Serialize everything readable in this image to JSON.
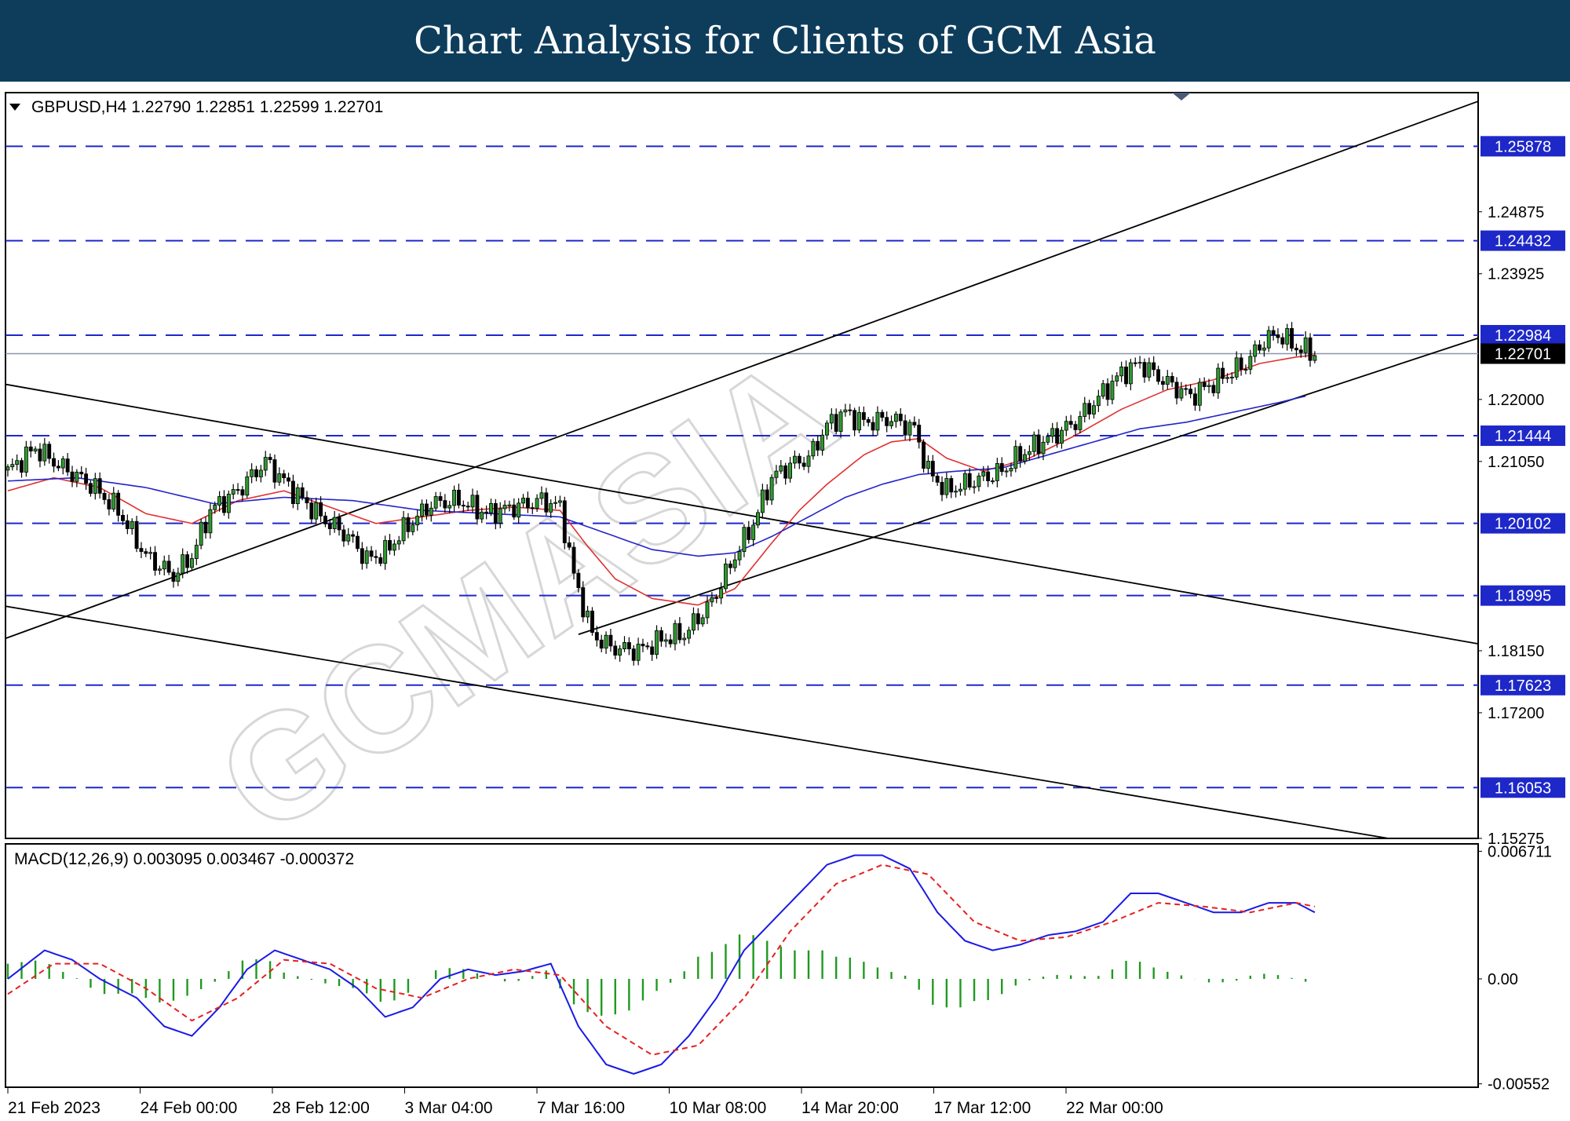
{
  "banner": {
    "title": "Chart Analysis for Clients of GCM Asia"
  },
  "chart_data": {
    "type": "candlestick",
    "symbol_header": "GBPUSD,H4  1.22790 1.22851 1.22599 1.22701",
    "price_axis": {
      "ticks": [
        "1.24875",
        "1.23925",
        "1.22000",
        "1.21050",
        "1.18150",
        "1.17200",
        "1.15275"
      ],
      "range": [
        1.15275,
        1.267
      ]
    },
    "levels": [
      "1.25878",
      "1.24432",
      "1.22984",
      "1.21444",
      "1.20102",
      "1.18995",
      "1.17623",
      "1.16053"
    ],
    "current_price": "1.22701",
    "x_axis_labels": [
      "21 Feb 2023",
      "24 Feb 00:00",
      "28 Feb 12:00",
      "3 Mar 04:00",
      "7 Mar 16:00",
      "10 Mar 08:00",
      "14 Mar 20:00",
      "17 Mar 12:00",
      "22 Mar 00:00"
    ],
    "close_path": [
      [
        0,
        1.209
      ],
      [
        6,
        1.2125
      ],
      [
        12,
        1.2095
      ],
      [
        18,
        1.207
      ],
      [
        24,
        1.203
      ],
      [
        30,
        1.196
      ],
      [
        36,
        1.193
      ],
      [
        40,
        1.196
      ],
      [
        44,
        1.203
      ],
      [
        50,
        1.206
      ],
      [
        56,
        1.2105
      ],
      [
        62,
        1.206
      ],
      [
        68,
        1.202
      ],
      [
        74,
        1.199
      ],
      [
        78,
        1.1955
      ],
      [
        82,
        1.1965
      ],
      [
        86,
        1.2
      ],
      [
        92,
        1.204
      ],
      [
        98,
        1.2045
      ],
      [
        104,
        1.2025
      ],
      [
        110,
        1.2035
      ],
      [
        116,
        1.2045
      ],
      [
        120,
        1.2035
      ],
      [
        123,
        1.193
      ],
      [
        127,
        1.184
      ],
      [
        131,
        1.182
      ],
      [
        137,
        1.1815
      ],
      [
        143,
        1.1835
      ],
      [
        147,
        1.184
      ],
      [
        153,
        1.189
      ],
      [
        158,
        1.196
      ],
      [
        162,
        1.201
      ],
      [
        166,
        1.208
      ],
      [
        170,
        1.21
      ],
      [
        174,
        1.211
      ],
      [
        178,
        1.216
      ],
      [
        182,
        1.218
      ],
      [
        186,
        1.2165
      ],
      [
        192,
        1.217
      ],
      [
        197,
        1.2155
      ],
      [
        200,
        1.209
      ],
      [
        204,
        1.206
      ],
      [
        210,
        1.2075
      ],
      [
        216,
        1.209
      ],
      [
        220,
        1.2115
      ],
      [
        226,
        1.214
      ],
      [
        232,
        1.2165
      ],
      [
        238,
        1.221
      ],
      [
        242,
        1.224
      ],
      [
        246,
        1.2255
      ],
      [
        252,
        1.2225
      ],
      [
        257,
        1.2205
      ],
      [
        263,
        1.223
      ],
      [
        269,
        1.2255
      ],
      [
        273,
        1.229
      ],
      [
        276,
        1.23
      ],
      [
        280,
        1.228
      ],
      [
        284,
        1.227
      ]
    ],
    "ma_indicators": [
      {
        "color": "#e03030",
        "points": [
          [
            0,
            1.206
          ],
          [
            10,
            1.208
          ],
          [
            20,
            1.2065
          ],
          [
            30,
            1.2025
          ],
          [
            40,
            1.201
          ],
          [
            50,
            1.2045
          ],
          [
            60,
            1.206
          ],
          [
            70,
            1.2035
          ],
          [
            80,
            1.201
          ],
          [
            90,
            1.202
          ],
          [
            100,
            1.203
          ],
          [
            110,
            1.2035
          ],
          [
            120,
            1.203
          ],
          [
            126,
            1.1975
          ],
          [
            132,
            1.1925
          ],
          [
            140,
            1.1895
          ],
          [
            150,
            1.1885
          ],
          [
            158,
            1.191
          ],
          [
            166,
            1.198
          ],
          [
            172,
            1.203
          ],
          [
            178,
            1.207
          ],
          [
            186,
            1.2115
          ],
          [
            192,
            1.2135
          ],
          [
            198,
            1.214
          ],
          [
            204,
            1.211
          ],
          [
            212,
            1.209
          ],
          [
            222,
            1.211
          ],
          [
            232,
            1.2145
          ],
          [
            242,
            1.2185
          ],
          [
            252,
            1.2215
          ],
          [
            262,
            1.223
          ],
          [
            272,
            1.2255
          ],
          [
            280,
            1.2265
          ],
          [
            284,
            1.2268
          ]
        ]
      },
      {
        "color": "#2424c8",
        "points": [
          [
            0,
            1.2075
          ],
          [
            15,
            1.208
          ],
          [
            30,
            1.2065
          ],
          [
            45,
            1.204
          ],
          [
            60,
            1.205
          ],
          [
            75,
            1.2045
          ],
          [
            90,
            1.203
          ],
          [
            105,
            1.2025
          ],
          [
            120,
            1.202
          ],
          [
            130,
            1.1995
          ],
          [
            140,
            1.197
          ],
          [
            150,
            1.196
          ],
          [
            158,
            1.1965
          ],
          [
            166,
            1.199
          ],
          [
            174,
            1.202
          ],
          [
            182,
            1.205
          ],
          [
            190,
            1.207
          ],
          [
            198,
            1.2085
          ],
          [
            206,
            1.209
          ],
          [
            216,
            1.2095
          ],
          [
            226,
            1.2115
          ],
          [
            236,
            1.2135
          ],
          [
            246,
            1.2155
          ],
          [
            256,
            1.2165
          ],
          [
            266,
            1.218
          ],
          [
            276,
            1.2195
          ],
          [
            282,
            1.2205
          ]
        ]
      }
    ],
    "trendlines": [
      {
        "from": [
          -2,
          1.183
        ],
        "to": [
          320,
          1.2658
        ]
      },
      {
        "from": [
          124,
          1.184
        ],
        "to": [
          320,
          1.2295
        ]
      },
      {
        "from": [
          -2,
          1.2225
        ],
        "to": [
          320,
          1.1825
        ]
      },
      {
        "from": [
          -2,
          1.1885
        ],
        "to": [
          300,
          1.15275
        ]
      }
    ],
    "macd": {
      "header": "MACD(12,26,9) 0.003095 0.003467 -0.000372",
      "ticks": [
        "0.006711",
        "0.00",
        "-0.00552"
      ],
      "range": [
        -0.0057,
        0.0071
      ],
      "main_color": "#1a1ae6",
      "signal_color": "#e62020",
      "histogram_color": "#1f9a1f",
      "main": [
        [
          0,
          0.0
        ],
        [
          8,
          0.0015
        ],
        [
          14,
          0.001
        ],
        [
          20,
          0.0
        ],
        [
          28,
          -0.001
        ],
        [
          34,
          -0.0025
        ],
        [
          40,
          -0.003
        ],
        [
          46,
          -0.0015
        ],
        [
          52,
          0.0005
        ],
        [
          58,
          0.0015
        ],
        [
          64,
          0.001
        ],
        [
          70,
          0.0005
        ],
        [
          76,
          -0.0005
        ],
        [
          82,
          -0.002
        ],
        [
          88,
          -0.0015
        ],
        [
          94,
          0.0
        ],
        [
          100,
          0.0005
        ],
        [
          106,
          0.0002
        ],
        [
          112,
          0.0004
        ],
        [
          118,
          0.0008
        ],
        [
          124,
          -0.0025
        ],
        [
          130,
          -0.0045
        ],
        [
          136,
          -0.005
        ],
        [
          142,
          -0.0045
        ],
        [
          148,
          -0.003
        ],
        [
          154,
          -0.001
        ],
        [
          160,
          0.0015
        ],
        [
          166,
          0.003
        ],
        [
          172,
          0.0045
        ],
        [
          178,
          0.006
        ],
        [
          184,
          0.0065
        ],
        [
          190,
          0.0065
        ],
        [
          196,
          0.0058
        ],
        [
          202,
          0.0035
        ],
        [
          208,
          0.002
        ],
        [
          214,
          0.0015
        ],
        [
          220,
          0.0018
        ],
        [
          226,
          0.0023
        ],
        [
          232,
          0.0025
        ],
        [
          238,
          0.003
        ],
        [
          244,
          0.0045
        ],
        [
          250,
          0.0045
        ],
        [
          256,
          0.004
        ],
        [
          262,
          0.0035
        ],
        [
          268,
          0.0035
        ],
        [
          274,
          0.004
        ],
        [
          280,
          0.004
        ],
        [
          284,
          0.0035
        ]
      ],
      "signal": [
        [
          0,
          -0.0008
        ],
        [
          10,
          0.0008
        ],
        [
          20,
          0.0008
        ],
        [
          30,
          -0.0005
        ],
        [
          40,
          -0.0022
        ],
        [
          50,
          -0.001
        ],
        [
          60,
          0.001
        ],
        [
          70,
          0.0008
        ],
        [
          80,
          -0.0005
        ],
        [
          90,
          -0.001
        ],
        [
          100,
          0.0
        ],
        [
          110,
          0.0005
        ],
        [
          120,
          0.0002
        ],
        [
          130,
          -0.0025
        ],
        [
          140,
          -0.004
        ],
        [
          150,
          -0.0035
        ],
        [
          160,
          -0.001
        ],
        [
          170,
          0.0025
        ],
        [
          180,
          0.005
        ],
        [
          190,
          0.006
        ],
        [
          200,
          0.0055
        ],
        [
          210,
          0.003
        ],
        [
          220,
          0.002
        ],
        [
          230,
          0.0022
        ],
        [
          240,
          0.003
        ],
        [
          250,
          0.004
        ],
        [
          260,
          0.0038
        ],
        [
          270,
          0.0035
        ],
        [
          280,
          0.004
        ],
        [
          284,
          0.0038
        ]
      ]
    }
  }
}
